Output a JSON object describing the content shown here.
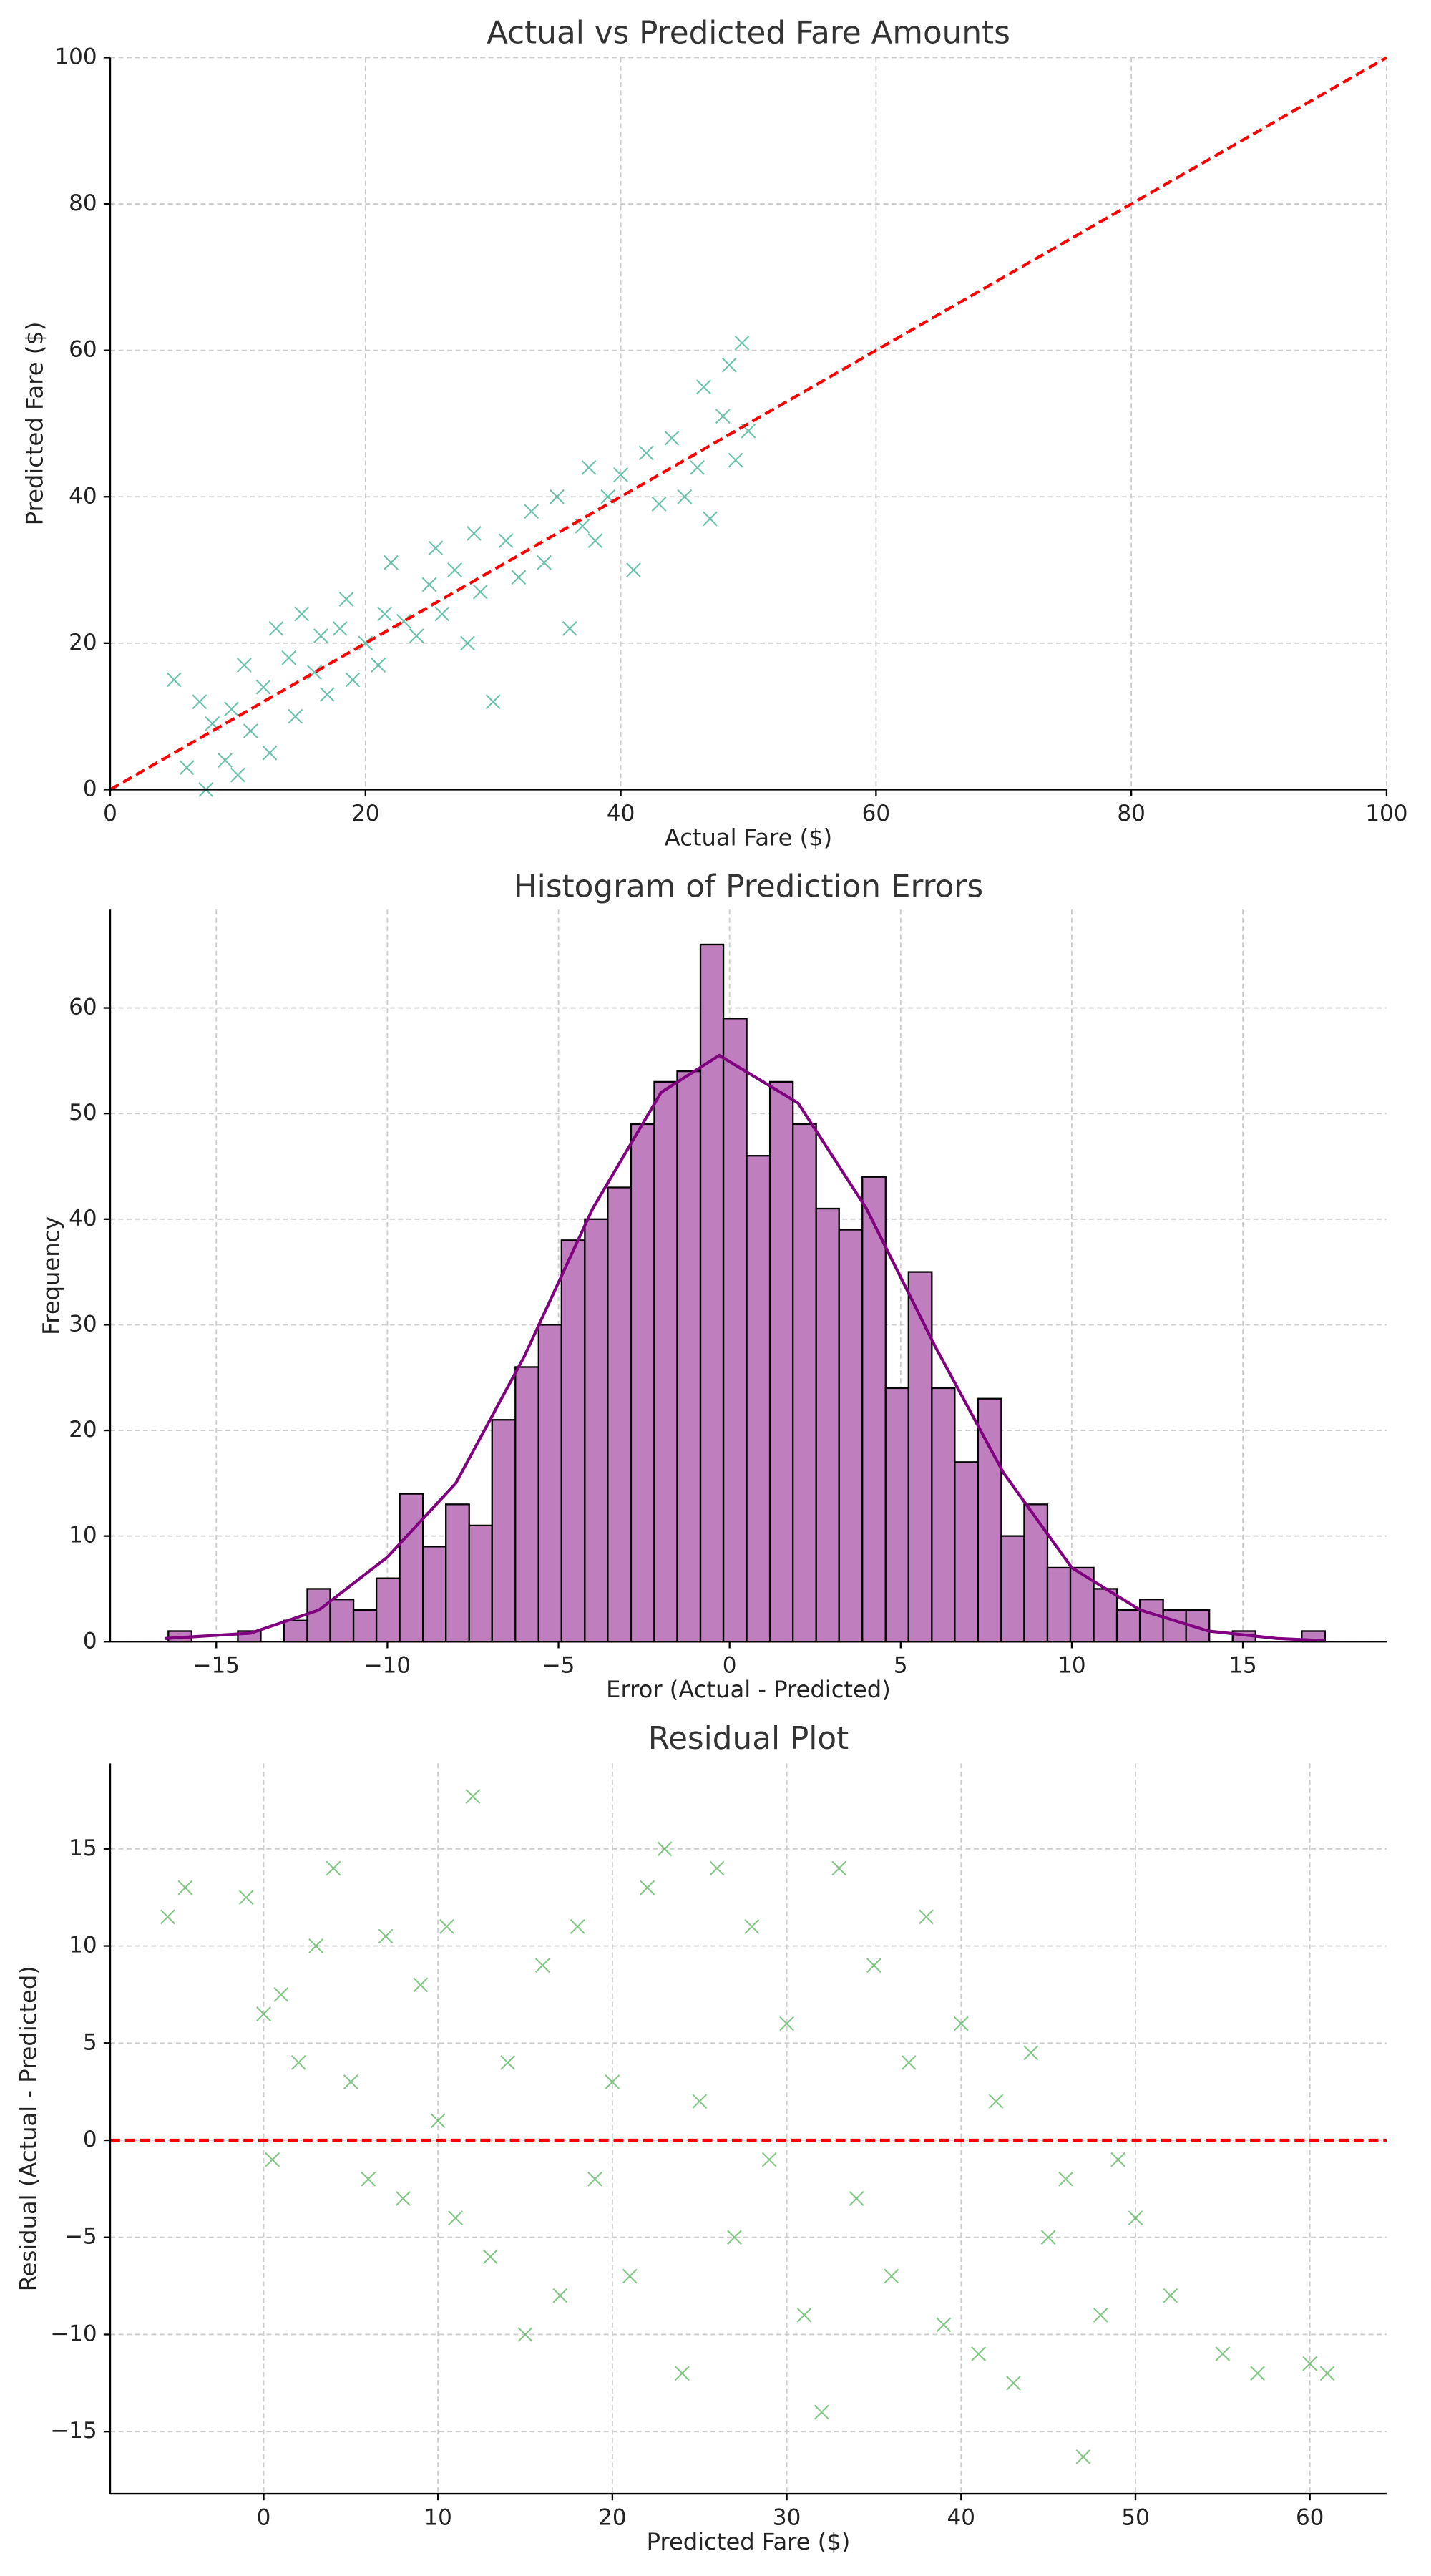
{
  "chart_data": [
    {
      "type": "scatter",
      "title": "Actual vs Predicted Fare Amounts",
      "x_label": "Actual Fare ($)",
      "y_label": "Predicted Fare ($)",
      "marker": "x",
      "color": "#2aa889",
      "grid": true,
      "x": [
        5,
        6,
        7,
        7.5,
        8,
        9,
        9.5,
        10,
        10.5,
        11,
        12,
        12.5,
        13,
        14,
        14.5,
        15,
        16,
        16.5,
        17,
        18,
        18.5,
        19,
        20,
        21,
        21.5,
        22,
        23,
        24,
        25,
        25.5,
        26,
        27,
        28,
        28.5,
        29,
        30,
        31,
        32,
        33,
        34,
        35,
        36,
        37,
        37.5,
        38,
        39,
        40,
        41,
        42,
        43,
        44,
        45,
        46,
        46.5,
        47,
        48,
        48.5,
        49,
        49.5,
        50
      ],
      "y": [
        15,
        3,
        12,
        0,
        9,
        4,
        11,
        2,
        17,
        8,
        14,
        5,
        22,
        18,
        10,
        24,
        16,
        21,
        13,
        22,
        26,
        15,
        20,
        17,
        24,
        31,
        23,
        21,
        28,
        33,
        24,
        30,
        20,
        35,
        27,
        12,
        34,
        29,
        38,
        31,
        40,
        22,
        36,
        44,
        34,
        40,
        43,
        30,
        46,
        39,
        48,
        40,
        44,
        55,
        37,
        51,
        58,
        45,
        61,
        49
      ],
      "reference_line": {
        "x": [
          0,
          100
        ],
        "y": [
          0,
          100
        ],
        "color": "#ff0000"
      },
      "xlim": [
        0,
        100
      ],
      "ylim": [
        0,
        100
      ],
      "xticks": [
        0,
        20,
        40,
        60,
        80,
        100
      ],
      "yticks": [
        0,
        20,
        40,
        60,
        80,
        100
      ]
    },
    {
      "type": "histogram",
      "title": "Histogram of Prediction Errors",
      "x_label": "Error (Actual - Predicted)",
      "y_label": "Frequency",
      "color": "#bf7fbf",
      "edge_color": "#000000",
      "grid": true,
      "bins": [
        -16.4,
        -15.72,
        -15.05,
        -14.37,
        -13.7,
        -13.02,
        -12.34,
        -11.67,
        -10.99,
        -10.32,
        -9.64,
        -8.96,
        -8.29,
        -7.61,
        -6.94,
        -6.26,
        -5.58,
        -4.91,
        -4.23,
        -3.56,
        -2.88,
        -2.2,
        -1.53,
        -0.85,
        -0.18,
        0.5,
        1.18,
        1.85,
        2.53,
        3.2,
        3.88,
        4.56,
        5.23,
        5.91,
        6.58,
        7.26,
        7.94,
        8.61,
        9.29,
        9.96,
        10.64,
        11.32,
        11.99,
        12.67,
        13.34,
        14.02,
        14.7,
        15.37,
        16.05,
        16.72,
        17.4
      ],
      "values": [
        1,
        0,
        0,
        1,
        0,
        2,
        5,
        4,
        3,
        6,
        14,
        9,
        13,
        11,
        21,
        26,
        30,
        38,
        40,
        43,
        49,
        53,
        54,
        66,
        59,
        46,
        53,
        49,
        41,
        39,
        44,
        24,
        35,
        24,
        17,
        23,
        10,
        13,
        7,
        7,
        5,
        3,
        4,
        3,
        3,
        0,
        1,
        0,
        0,
        1
      ],
      "kde": {
        "color": "#800080",
        "x": [
          -16.5,
          -14,
          -12,
          -10,
          -8,
          -6,
          -4,
          -2,
          -0.3,
          2,
          4,
          6,
          8,
          10,
          12,
          14,
          16,
          17.4
        ],
        "y": [
          0.3,
          0.8,
          3,
          8,
          15,
          27,
          41,
          52,
          55.5,
          51,
          41,
          28,
          16,
          7,
          3,
          1,
          0.3,
          0.1
        ]
      },
      "xlim": [
        -18.1,
        19.2
      ],
      "ylim": [
        0,
        69.3
      ],
      "xticks": [
        {
          "value": -15,
          "label": "−15"
        },
        {
          "value": -10,
          "label": "−10"
        },
        {
          "value": -5,
          "label": "−5"
        },
        0,
        5,
        10,
        15
      ],
      "yticks": [
        0,
        10,
        20,
        30,
        40,
        50,
        60
      ]
    },
    {
      "type": "scatter",
      "title": "Residual Plot",
      "x_label": "Predicted Fare ($)",
      "y_label": "Residual (Actual - Predicted)",
      "marker": "x",
      "color": "#4caf50",
      "grid": true,
      "x": [
        -5.5,
        -4.5,
        -1,
        0,
        0.5,
        1,
        2,
        3,
        4,
        5,
        6,
        7,
        8,
        9,
        10,
        10.5,
        11,
        12,
        13,
        14,
        15,
        16,
        17,
        18,
        19,
        20,
        21,
        22,
        23,
        24,
        25,
        26,
        27,
        28,
        29,
        30,
        31,
        32,
        33,
        34,
        35,
        36,
        37,
        38,
        39,
        40,
        41,
        42,
        43,
        44,
        45,
        46,
        47,
        48,
        49,
        50,
        52,
        55,
        57,
        60,
        61
      ],
      "y": [
        11.5,
        13,
        12.5,
        6.5,
        -1,
        7.5,
        4,
        10,
        14,
        3,
        -2,
        10.5,
        -3,
        8,
        1,
        11,
        -4,
        17.7,
        -6,
        4,
        -10,
        9,
        -8,
        11,
        -2,
        3,
        -7,
        13,
        15,
        -12,
        2,
        14,
        -5,
        11,
        -1,
        6,
        -9,
        -14,
        14,
        -3,
        9,
        -7,
        4,
        11.5,
        -9.5,
        6,
        -11,
        2,
        -12.5,
        4.5,
        -5,
        -2,
        -16.3,
        -9,
        -1,
        -4,
        -8,
        -11,
        -12,
        -11.5,
        -12
      ],
      "reference_line": {
        "y": 0,
        "color": "#ff0000"
      },
      "xlim": [
        -8.8,
        64.4
      ],
      "ylim": [
        -18.2,
        19.4
      ],
      "xticks": [
        0,
        10,
        20,
        30,
        40,
        50,
        60
      ],
      "yticks": [
        {
          "value": -15,
          "label": "−15"
        },
        {
          "value": -10,
          "label": "−10"
        },
        {
          "value": -5,
          "label": "−5"
        },
        0,
        5,
        10,
        15
      ]
    }
  ]
}
